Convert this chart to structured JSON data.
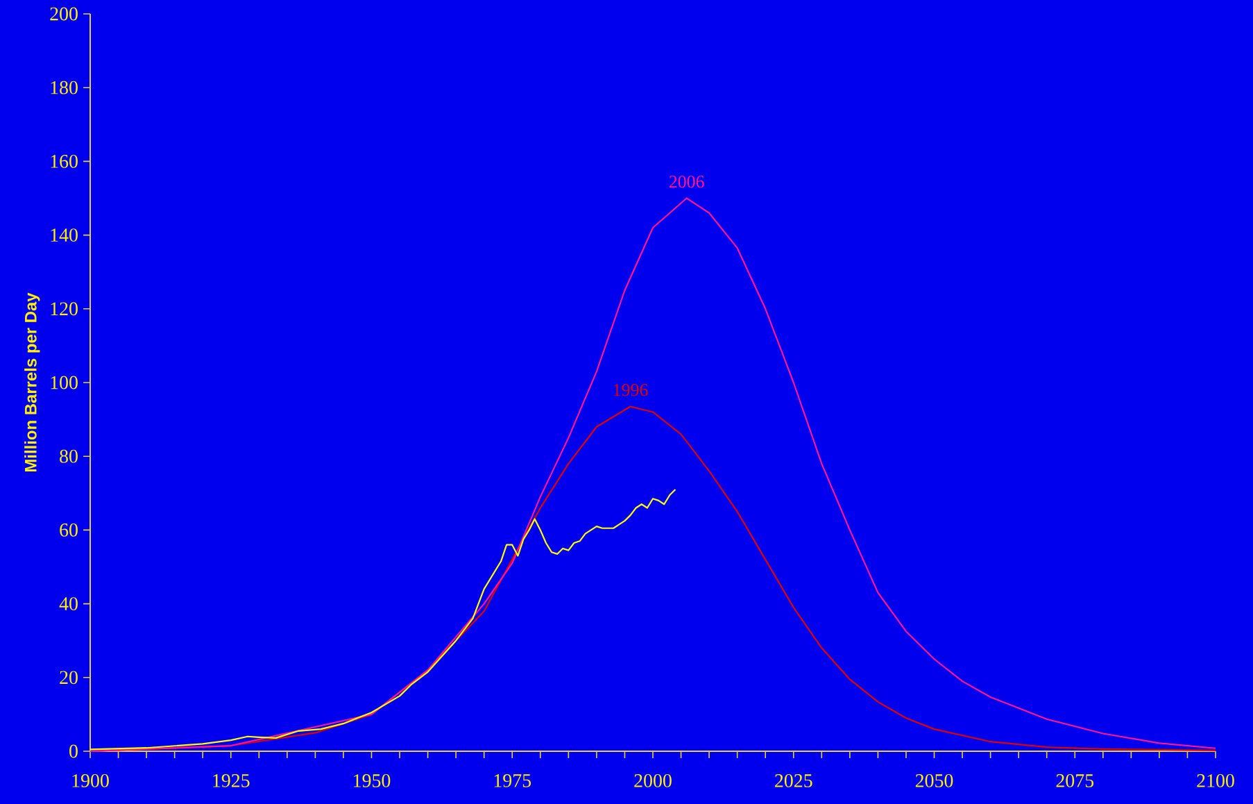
{
  "chart_data": {
    "type": "line",
    "ylabel": "Million Barrels per Day",
    "xlim": [
      1900,
      2100
    ],
    "ylim": [
      0,
      200
    ],
    "xticks": [
      1900,
      {
        "value": 1905,
        "label": null
      },
      {
        "value": 1910,
        "label": null
      },
      {
        "value": 1915,
        "label": null
      },
      {
        "value": 1920,
        "label": null
      },
      1925,
      {
        "value": 1930,
        "label": null
      },
      {
        "value": 1935,
        "label": null
      },
      {
        "value": 1940,
        "label": null
      },
      {
        "value": 1945,
        "label": null
      },
      1950,
      {
        "value": 1955,
        "label": null
      },
      {
        "value": 1960,
        "label": null
      },
      {
        "value": 1965,
        "label": null
      },
      {
        "value": 1970,
        "label": null
      },
      1975,
      {
        "value": 1980,
        "label": null
      },
      {
        "value": 1985,
        "label": null
      },
      {
        "value": 1990,
        "label": null
      },
      {
        "value": 1995,
        "label": null
      },
      2000,
      {
        "value": 2005,
        "label": null
      },
      {
        "value": 2010,
        "label": null
      },
      {
        "value": 2015,
        "label": null
      },
      {
        "value": 2020,
        "label": null
      },
      2025,
      {
        "value": 2030,
        "label": null
      },
      {
        "value": 2035,
        "label": null
      },
      {
        "value": 2040,
        "label": null
      },
      {
        "value": 2045,
        "label": null
      },
      2050,
      {
        "value": 2055,
        "label": null
      },
      {
        "value": 2060,
        "label": null
      },
      {
        "value": 2065,
        "label": null
      },
      {
        "value": 2070,
        "label": null
      },
      2075,
      {
        "value": 2080,
        "label": null
      },
      {
        "value": 2085,
        "label": null
      },
      {
        "value": 2090,
        "label": null
      },
      {
        "value": 2095,
        "label": null
      },
      2100
    ],
    "yticks": [
      0,
      20,
      40,
      60,
      80,
      100,
      120,
      140,
      160,
      180,
      200
    ],
    "grid": false,
    "legend": false,
    "marker": "none",
    "line_style": "solid",
    "series": [
      {
        "name": "1996",
        "color": "#e00000",
        "x": [
          1900,
          1925,
          1940,
          1950,
          1960,
          1970,
          1975,
          1980,
          1985,
          1990,
          1996,
          2000,
          2005,
          2010,
          2015,
          2020,
          2025,
          2030,
          2035,
          2040,
          2045,
          2050,
          2060,
          2070,
          2080,
          2100
        ],
        "values": [
          0,
          1.5,
          5,
          10,
          22,
          38,
          52,
          66,
          78,
          88,
          93.5,
          92,
          86,
          76,
          65,
          52,
          39,
          28,
          19.5,
          13.4,
          9,
          6,
          2.6,
          1.1,
          0.6,
          0.2
        ]
      },
      {
        "name": "2006",
        "color": "#ff1493",
        "x": [
          1900,
          1925,
          1950,
          1960,
          1970,
          1975,
          1980,
          1985,
          1990,
          1995,
          2000,
          2006,
          2010,
          2015,
          2020,
          2025,
          2030,
          2035,
          2040,
          2045,
          2050,
          2055,
          2060,
          2070,
          2080,
          2090,
          2100
        ],
        "values": [
          0,
          1.5,
          10,
          22,
          40,
          51,
          69,
          85,
          103,
          125,
          142,
          150,
          146,
          136.5,
          120,
          100,
          78,
          60,
          43,
          32.5,
          25,
          19,
          14.7,
          8.7,
          4.8,
          2.2,
          0.8
        ]
      },
      {
        "color": "#ffff00",
        "x": [
          1900,
          1910,
          1920,
          1925,
          1928,
          1930,
          1933,
          1937,
          1941,
          1945,
          1950,
          1955,
          1957,
          1960,
          1965,
          1968,
          1970,
          1973,
          1974,
          1975,
          1976,
          1977,
          1978,
          1979,
          1980,
          1981,
          1982,
          1983,
          1984,
          1985,
          1986,
          1987,
          1988,
          1989,
          1990,
          1991,
          1992,
          1993,
          1994,
          1995,
          1996,
          1997,
          1998,
          1999,
          2000,
          2001,
          2002,
          2003,
          2004
        ],
        "values": [
          0.5,
          0.9,
          2,
          3,
          4,
          3.8,
          3.6,
          5.5,
          6,
          7.5,
          10.5,
          15,
          18,
          21.5,
          30,
          36,
          44,
          51.5,
          56,
          56,
          53,
          57.5,
          60,
          63,
          60,
          56.5,
          54,
          53.5,
          55,
          54.5,
          56.5,
          57,
          59,
          60,
          61,
          60.5,
          60.5,
          60.5,
          61.5,
          62.5,
          64,
          66,
          67,
          66,
          68.5,
          68,
          67,
          69.5,
          71
        ]
      }
    ]
  }
}
